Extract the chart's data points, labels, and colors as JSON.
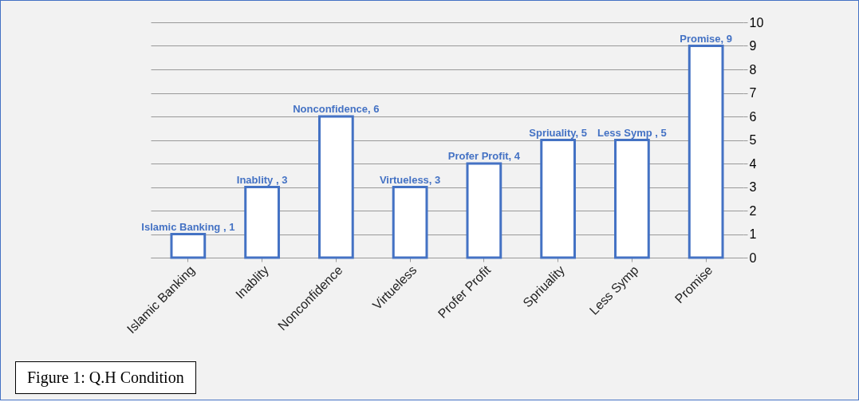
{
  "chart_data": {
    "type": "bar",
    "categories": [
      "Islamic Banking",
      "Inablity",
      "Nonconfidence",
      "Virtueless",
      "Profer Profit",
      "Spriuality",
      "Less Symp",
      "Promise"
    ],
    "values": [
      1,
      3,
      6,
      3,
      4,
      5,
      5,
      9
    ],
    "value_labels": [
      "Islamic Banking , 1",
      "Inablity , 3",
      "Nonconfidence, 6",
      "Virtueless, 3",
      "Profer Profit, 4",
      "Spriuality, 5",
      "Less Symp , 5",
      "Promise, 9"
    ],
    "color": "#4472c4",
    "ylim": [
      0,
      10
    ],
    "yticks": [
      0,
      1,
      2,
      3,
      4,
      5,
      6,
      7,
      8,
      9,
      10
    ],
    "grid": "y",
    "annotations": [
      "Figure 1: Q.H Condition"
    ]
  }
}
